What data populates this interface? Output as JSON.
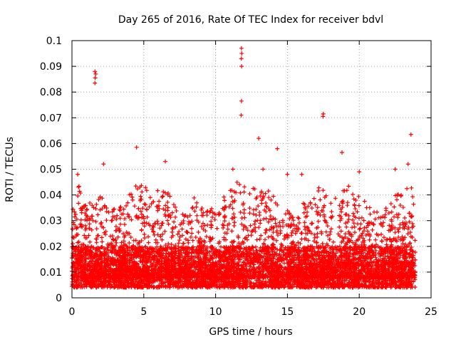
{
  "chart_data": {
    "type": "scatter",
    "title": "Day 265 of 2016, Rate Of TEC Index for receiver bdvl",
    "xlabel": "GPS time / hours",
    "ylabel": "ROTI / TECUs",
    "xlim": [
      0,
      25
    ],
    "ylim": [
      0,
      0.1
    ],
    "xticks": [
      0,
      5,
      10,
      15,
      20,
      25
    ],
    "xtick_labels": [
      "0",
      "5",
      "10",
      "15",
      "20",
      "25"
    ],
    "yticks": [
      0,
      0.01,
      0.02,
      0.03,
      0.04,
      0.05,
      0.06,
      0.07,
      0.08,
      0.09,
      0.1
    ],
    "ytick_labels": [
      "0",
      "0.01",
      "0.02",
      "0.03",
      "0.04",
      "0.05",
      "0.06",
      "0.07",
      "0.08",
      "0.09",
      "0.1"
    ],
    "grid": true,
    "marker": "+",
    "series": [
      {
        "name": "ROTI",
        "color": "#ff0000",
        "time_range_hours": [
          0.0,
          23.9
        ],
        "baseline_band": [
          0.004,
          0.02
        ],
        "notable_points": [
          {
            "x": 1.6,
            "y": 0.088
          },
          {
            "x": 1.65,
            "y": 0.087
          },
          {
            "x": 1.62,
            "y": 0.0855
          },
          {
            "x": 1.6,
            "y": 0.0835
          },
          {
            "x": 11.8,
            "y": 0.097
          },
          {
            "x": 11.82,
            "y": 0.095
          },
          {
            "x": 11.79,
            "y": 0.093
          },
          {
            "x": 11.81,
            "y": 0.09
          },
          {
            "x": 11.8,
            "y": 0.0765
          },
          {
            "x": 11.78,
            "y": 0.071
          },
          {
            "x": 17.5,
            "y": 0.0715
          },
          {
            "x": 17.48,
            "y": 0.0705
          },
          {
            "x": 23.6,
            "y": 0.0635
          },
          {
            "x": 13.0,
            "y": 0.062
          },
          {
            "x": 14.3,
            "y": 0.058
          },
          {
            "x": 4.5,
            "y": 0.0585
          },
          {
            "x": 2.2,
            "y": 0.052
          },
          {
            "x": 6.5,
            "y": 0.053
          },
          {
            "x": 18.8,
            "y": 0.0565
          },
          {
            "x": 11.2,
            "y": 0.05
          },
          {
            "x": 13.3,
            "y": 0.05
          },
          {
            "x": 15.0,
            "y": 0.048
          },
          {
            "x": 16.0,
            "y": 0.048
          },
          {
            "x": 20.0,
            "y": 0.049
          },
          {
            "x": 22.5,
            "y": 0.05
          },
          {
            "x": 23.4,
            "y": 0.052
          },
          {
            "x": 0.4,
            "y": 0.048
          }
        ],
        "envelope_peaks": [
          {
            "x": 0.5,
            "y": 0.042
          },
          {
            "x": 1.0,
            "y": 0.036
          },
          {
            "x": 1.5,
            "y": 0.038
          },
          {
            "x": 2.0,
            "y": 0.04
          },
          {
            "x": 2.5,
            "y": 0.037
          },
          {
            "x": 3.0,
            "y": 0.035
          },
          {
            "x": 3.5,
            "y": 0.036
          },
          {
            "x": 4.0,
            "y": 0.04
          },
          {
            "x": 4.5,
            "y": 0.046
          },
          {
            "x": 5.0,
            "y": 0.044
          },
          {
            "x": 5.5,
            "y": 0.04
          },
          {
            "x": 6.0,
            "y": 0.042
          },
          {
            "x": 6.5,
            "y": 0.045
          },
          {
            "x": 7.0,
            "y": 0.038
          },
          {
            "x": 7.5,
            "y": 0.035
          },
          {
            "x": 8.0,
            "y": 0.033
          },
          {
            "x": 8.5,
            "y": 0.04
          },
          {
            "x": 9.0,
            "y": 0.037
          },
          {
            "x": 9.5,
            "y": 0.034
          },
          {
            "x": 10.0,
            "y": 0.036
          },
          {
            "x": 10.5,
            "y": 0.04
          },
          {
            "x": 11.0,
            "y": 0.042
          },
          {
            "x": 11.5,
            "y": 0.045
          },
          {
            "x": 12.0,
            "y": 0.044
          },
          {
            "x": 12.5,
            "y": 0.044
          },
          {
            "x": 13.0,
            "y": 0.046
          },
          {
            "x": 13.5,
            "y": 0.043
          },
          {
            "x": 14.0,
            "y": 0.04
          },
          {
            "x": 14.5,
            "y": 0.038
          },
          {
            "x": 15.0,
            "y": 0.035
          },
          {
            "x": 15.5,
            "y": 0.03
          },
          {
            "x": 16.0,
            "y": 0.038
          },
          {
            "x": 16.5,
            "y": 0.036
          },
          {
            "x": 17.0,
            "y": 0.044
          },
          {
            "x": 17.5,
            "y": 0.042
          },
          {
            "x": 18.0,
            "y": 0.038
          },
          {
            "x": 18.5,
            "y": 0.04
          },
          {
            "x": 19.0,
            "y": 0.045
          },
          {
            "x": 19.5,
            "y": 0.042
          },
          {
            "x": 20.0,
            "y": 0.04
          },
          {
            "x": 20.5,
            "y": 0.037
          },
          {
            "x": 21.0,
            "y": 0.035
          },
          {
            "x": 21.5,
            "y": 0.036
          },
          {
            "x": 22.0,
            "y": 0.038
          },
          {
            "x": 22.5,
            "y": 0.042
          },
          {
            "x": 23.0,
            "y": 0.04
          },
          {
            "x": 23.5,
            "y": 0.044
          }
        ]
      }
    ]
  }
}
